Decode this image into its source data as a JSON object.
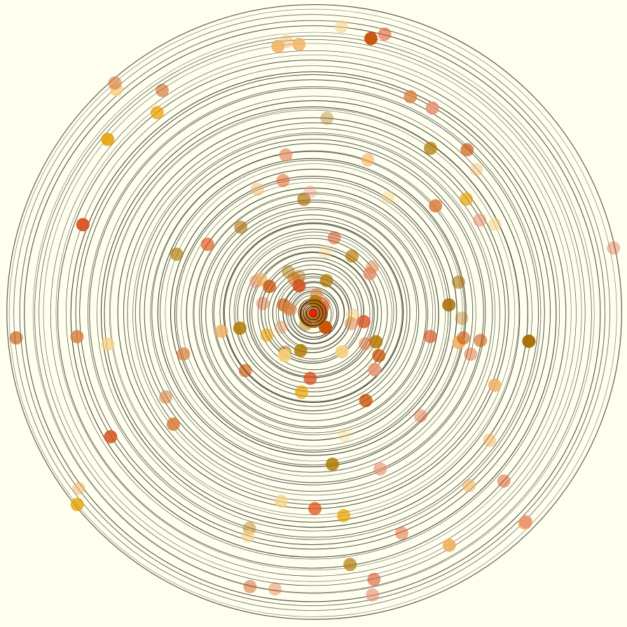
{
  "scene": {
    "type": "orbit-visualization",
    "background_color": "#fffff0",
    "ring_color": "#1a1a10",
    "center_color": "#ff1a00",
    "center_ring_color": "#c06000",
    "planet_palette": [
      "#e05a20",
      "#b07800",
      "#e8a000",
      "#c84c00",
      "#d98040",
      "#f0b060",
      "#e89070",
      "#f5d080",
      "#a86a00",
      "#d85020"
    ],
    "orbit_count": 80,
    "planet_count": 120
  }
}
